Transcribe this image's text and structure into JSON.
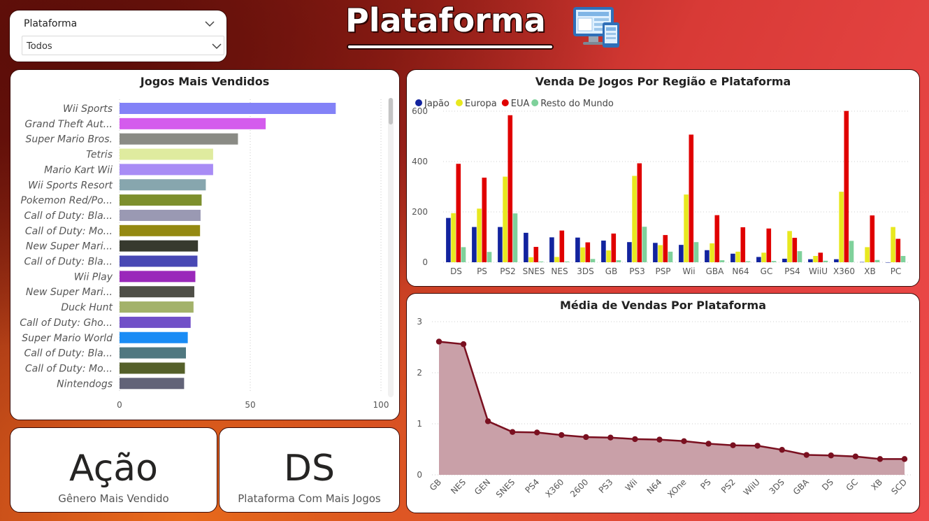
{
  "header": {
    "title": "Plataforma"
  },
  "slicer": {
    "label": "Plataforma",
    "selected": "Todos"
  },
  "kpis": [
    {
      "value": "Ação",
      "label": "Gênero Mais Vendido"
    },
    {
      "value": "DS",
      "label": "Plataforma Com Mais Jogos"
    }
  ],
  "colors": {
    "japao": "#12239e",
    "europa": "#e8e81f",
    "eua": "#e00000",
    "resto": "#7fd19b",
    "area_line": "#7a1020",
    "area_fill": "#c9a0a8"
  },
  "chart_data": [
    {
      "type": "bar",
      "orientation": "horizontal",
      "title": "Jogos Mais Vendidos",
      "xlim": [
        0,
        100
      ],
      "xticks": [
        0,
        50,
        100
      ],
      "categories": [
        "Wii Sports",
        "Grand Theft Aut...",
        "Super Mario Bros.",
        "Tetris",
        "Mario Kart Wii",
        "Wii Sports Resort",
        "Pokemon Red/Po...",
        "Call of Duty: Bla...",
        "Call of Duty: Mo...",
        "New Super Mari...",
        "Call of Duty: Bla...",
        "Wii Play",
        "New Super Mari...",
        "Duck Hunt",
        "Call of Duty: Gho...",
        "Super Mario World",
        "Call of Duty: Bla...",
        "Call of Duty: Mo...",
        "Nintendogs"
      ],
      "values": [
        82.7,
        55.9,
        45.3,
        35.8,
        35.8,
        33.0,
        31.4,
        31.0,
        30.8,
        30.0,
        29.8,
        29.0,
        28.6,
        28.3,
        27.2,
        26.1,
        25.4,
        25.0,
        24.7
      ],
      "bar_colors": [
        "#8382f7",
        "#d45ced",
        "#8a8b85",
        "#dfeb9f",
        "#a88cf5",
        "#87a6ae",
        "#7d8f2d",
        "#9a99b3",
        "#948912",
        "#373a2e",
        "#4848b4",
        "#9a28ba",
        "#4f4f47",
        "#a3b26a",
        "#7150c8",
        "#1a8cf5",
        "#507880",
        "#55602a",
        "#626378"
      ]
    },
    {
      "type": "bar",
      "title": "Venda De Jogos Por Região e Plataforma",
      "legend_position": "top-left",
      "ylim": [
        0,
        650
      ],
      "yticks": [
        0,
        200,
        400,
        600
      ],
      "categories": [
        "DS",
        "PS",
        "PS2",
        "SNES",
        "NES",
        "3DS",
        "GB",
        "PS3",
        "PSP",
        "Wii",
        "GBA",
        "N64",
        "GC",
        "PS4",
        "WiiU",
        "X360",
        "XB",
        "PC"
      ],
      "series": [
        {
          "name": "Japão",
          "values": [
            176,
            140,
            140,
            117,
            99,
            98,
            86,
            80,
            77,
            69,
            48,
            34,
            21,
            14,
            12,
            12,
            1,
            0
          ]
        },
        {
          "name": "Europa",
          "values": [
            195,
            213,
            340,
            20,
            21,
            59,
            47,
            343,
            68,
            269,
            75,
            42,
            38,
            124,
            25,
            280,
            60,
            140
          ]
        },
        {
          "name": "EUA",
          "values": [
            391,
            336,
            584,
            61,
            126,
            79,
            114,
            393,
            108,
            507,
            187,
            139,
            134,
            97,
            38,
            601,
            186,
            93
          ]
        },
        {
          "name": "Resto do Mundo",
          "values": [
            60,
            41,
            194,
            3,
            3,
            13,
            8,
            141,
            42,
            80,
            8,
            4,
            5,
            44,
            6,
            85,
            9,
            25
          ]
        }
      ]
    },
    {
      "type": "area",
      "title": "Média de Vendas Por Plataforma",
      "ylim": [
        0,
        3
      ],
      "yticks": [
        0,
        1,
        2,
        3
      ],
      "categories": [
        "GB",
        "NES",
        "GEN",
        "SNES",
        "PS4",
        "X360",
        "2600",
        "PS3",
        "Wii",
        "N64",
        "XOne",
        "PS",
        "PS2",
        "WiiU",
        "3DS",
        "GBA",
        "DS",
        "GC",
        "XB",
        "SCD"
      ],
      "values": [
        2.61,
        2.56,
        1.05,
        0.84,
        0.83,
        0.78,
        0.74,
        0.73,
        0.7,
        0.69,
        0.66,
        0.61,
        0.58,
        0.57,
        0.49,
        0.39,
        0.38,
        0.36,
        0.31,
        0.31
      ]
    }
  ]
}
